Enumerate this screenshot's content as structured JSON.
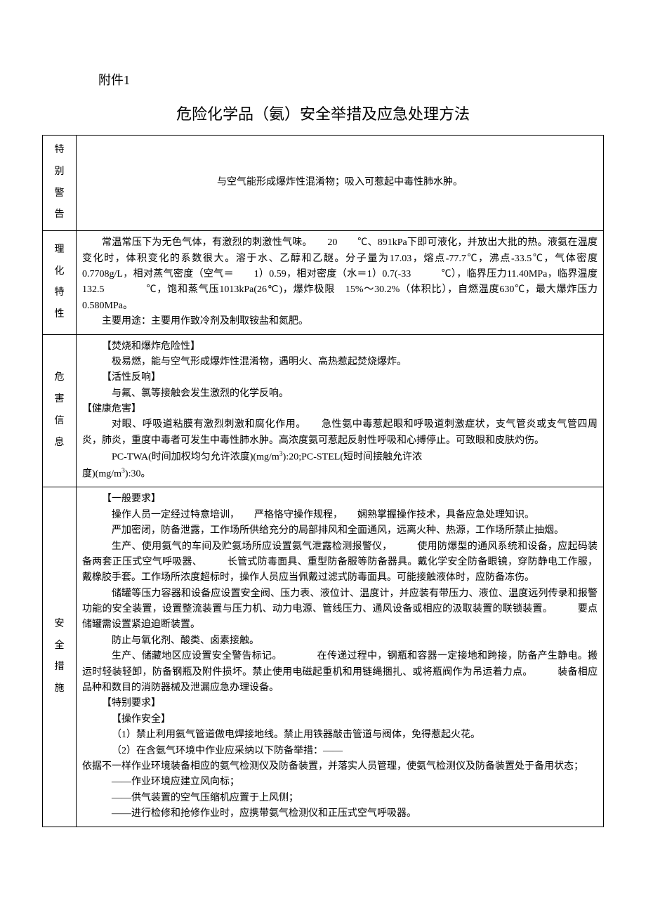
{
  "attachment_label": "附件1",
  "title": "危险化学品（氨）安全举措及应急处理方法",
  "rows": {
    "r1": {
      "label": "特别警告",
      "content": "与空气能形成爆炸性混淆物；吸入可惹起中毒性肺水肿。"
    },
    "r2": {
      "label": "理化特性",
      "p1": "常温常压下为无色气体，有激烈的刺激性气味。　　20　　℃、891kPa下即可液化，并放出大批的热。液氨在温度变化时，体积变化的系数很大。溶于水、乙醇和乙醚。分子量为17.03，熔点-77.7℃，沸点-33.5℃，气体密度　　　　　0.7708g/L，相对蒸气密度（空气＝　　1）0.59，相对密度（水＝1）0.7(-33　　　℃），临界压力11.40MPa，临界温度132.5　　　　℃，饱和蒸气压1013kPa(26℃)，爆炸极限　15%～30.2%（体积比），自燃温度630℃，最大爆炸压力0.580MPa。",
      "p2": "主要用途：主要用作致冷剂及制取铵盐和氮肥。"
    },
    "r3": {
      "label": "危害信息",
      "h1": "【焚烧和爆炸危险性】",
      "p1": "极易燃，能与空气形成爆炸性混淆物，遇明火、高热惹起焚烧爆炸。",
      "h2": "【活性反响】",
      "p2": "与氟、氯等接触会发生激烈的化学反响。",
      "h3": "【健康危害】",
      "p3": "对眼、呼吸道粘膜有激烈刺激和腐化作用。　　急性氨中毒惹起眼和呼吸道刺激症状，支气管炎或支气管四周炎，肺炎，重度中毒者可发生中毒性肺水肿。高浓度氨可惹起反射性呼吸和心搏停止。可致眼和皮肤灼伤。",
      "p4_a": "PC-TWA(时间加权均匀允许浓度)(mg/m",
      "p4_b": "):20;PC-STEL(短时间接触允许浓",
      "p4_c": "度)(mg/m",
      "p4_d": "):30。",
      "sup3": "3"
    },
    "r4": {
      "label": "安全措施",
      "h1": "【一般要求】",
      "p1": "操作人员一定经过特意培训，　　严格恪守操作规程，　　娴熟掌握操作技术，具备应急处理知识。",
      "p2": "严加密闭，防备泄露，工作场所供给充分的局部排风和全面通风，远离火种、热源，工作场所禁止抽烟。",
      "p3": "生产、使用氨气的车间及贮氨场所应设置氨气泄露检测报警仪，　　　使用防爆型的通风系统和设备，应起码装备两套正压式空气呼吸器、　　　长管式防毒面具、重型防备服等防备器具。戴化学安全防备眼镜，穿防静电工作服，戴橡胶手套。工作场所浓度超标时，操作人员应当佩戴过滤式防毒面具。可能接触液体时，应防备冻伤。",
      "p4": "储罐等压力容器和设备应设置安全阀、压力表、液位计、温度计，并应装有带压力、液位、温度远列传录和报警功能的安全装置，设置整流装置与压力机、动力电源、管线压力、通风设备或相应的汲取装置的联锁装置。　　　要点储罐需设置紧迫迫断装置。",
      "p5": "防止与氧化剂、酸类、卤素接触。",
      "p6": "生产、储藏地区应设置安全警告标记。　　　　在传递过程中，钢瓶和容器一定接地和跨接，防备产生静电。搬运时轻装轻卸，防备钢瓶及附件损坏。禁止使用电磁起重机和用链绳捆扎、或将瓶阀作为吊运着力点。　　　装备相应品种和数目的消防器械及泄漏应急办理设备。",
      "h2": "【特别要求】",
      "h3": "【操作安全】",
      "p7": "（1）禁止利用氨气管道做电焊接地线。禁止用铁器敲击管道与阀体，免得惹起火花。",
      "p8": "（2）在含氨气环境中作业应采纳以下防备举措：——",
      "p9": "依据不一样作业环境装备相应的氨气检测仪及防备装置，并落实人员管理，使氨气检测仪及防备装置处于备用状态；",
      "d1": "——作业环境应建立风向标；",
      "d2": "——供气装置的空气压缩机应置于上风侧；",
      "d3": "——进行检修和抢修作业时，应携带氨气检测仪和正压式空气呼吸器。"
    }
  }
}
